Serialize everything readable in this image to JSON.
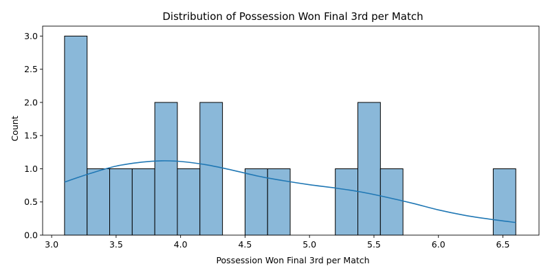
{
  "chart_data": {
    "type": "bar",
    "title": "Distribution of Possession Won Final 3rd per Match",
    "xlabel": "Possession Won Final 3rd per Match",
    "ylabel": "Count",
    "xlim": [
      2.93,
      6.78
    ],
    "ylim": [
      0,
      3.15
    ],
    "x_ticks": [
      "3.0",
      "3.5",
      "4.0",
      "4.5",
      "5.0",
      "5.5",
      "6.0",
      "6.5"
    ],
    "y_ticks": [
      "0.0",
      "0.5",
      "1.0",
      "1.5",
      "2.0",
      "2.5",
      "3.0"
    ],
    "bins": {
      "start": 3.1,
      "end": 6.6,
      "counts": [
        3,
        1,
        1,
        1,
        2,
        1,
        2,
        0,
        1,
        1,
        0,
        0,
        1,
        2,
        1,
        0,
        0,
        0,
        0,
        1
      ]
    },
    "kde": {
      "x": [
        3.1,
        3.3,
        3.5,
        3.7,
        3.85,
        4.0,
        4.2,
        4.4,
        4.6,
        4.8,
        5.0,
        5.2,
        5.4,
        5.6,
        5.8,
        6.0,
        6.2,
        6.4,
        6.6
      ],
      "y": [
        0.8,
        0.93,
        1.04,
        1.1,
        1.12,
        1.11,
        1.06,
        0.98,
        0.89,
        0.82,
        0.76,
        0.71,
        0.65,
        0.57,
        0.48,
        0.38,
        0.3,
        0.24,
        0.19
      ]
    },
    "bar_color": "#8ab8d9",
    "bar_edge_color": "#000000",
    "kde_color": "#1f77b4",
    "grid": false,
    "legend": false
  }
}
